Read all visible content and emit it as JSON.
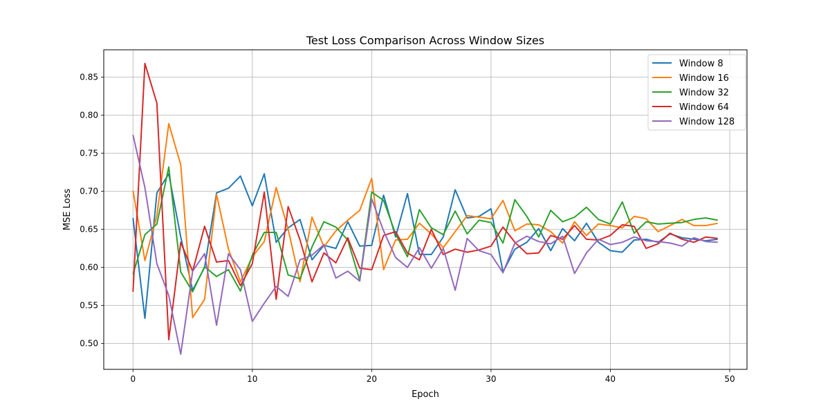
{
  "chart_data": {
    "type": "line",
    "title": "Test Loss Comparison Across Window Sizes",
    "xlabel": "Epoch",
    "ylabel": "MSE Loss",
    "xlim": [
      -2.45,
      51.45
    ],
    "ylim": [
      0.466,
      0.886
    ],
    "xticks": [
      0,
      10,
      20,
      30,
      40,
      50
    ],
    "yticks": [
      0.5,
      0.55,
      0.6,
      0.65,
      0.7,
      0.75,
      0.8,
      0.85
    ],
    "grid": true,
    "legend_position": "top-right",
    "x": [
      0,
      1,
      2,
      3,
      4,
      5,
      6,
      7,
      8,
      9,
      10,
      11,
      12,
      13,
      14,
      15,
      16,
      17,
      18,
      19,
      20,
      21,
      22,
      23,
      24,
      25,
      26,
      27,
      28,
      29,
      30,
      31,
      32,
      33,
      34,
      35,
      36,
      37,
      38,
      39,
      40,
      41,
      42,
      43,
      44,
      45,
      46,
      47,
      48,
      49
    ],
    "series": [
      {
        "name": "Window 8",
        "color": "#1f77b4",
        "values": [
          0.665,
          0.533,
          0.698,
          0.723,
          0.64,
          0.57,
          0.6,
          0.698,
          0.704,
          0.72,
          0.681,
          0.723,
          0.633,
          0.652,
          0.663,
          0.61,
          0.629,
          0.625,
          0.66,
          0.628,
          0.629,
          0.695,
          0.64,
          0.697,
          0.617,
          0.617,
          0.64,
          0.702,
          0.665,
          0.667,
          0.677,
          0.594,
          0.624,
          0.633,
          0.651,
          0.622,
          0.651,
          0.635,
          0.658,
          0.633,
          0.622,
          0.62,
          0.636,
          0.637,
          0.633,
          0.644,
          0.639,
          0.637,
          0.635,
          0.637
        ]
      },
      {
        "name": "Window 16",
        "color": "#ff7f0e",
        "values": [
          0.701,
          0.609,
          0.668,
          0.789,
          0.735,
          0.534,
          0.558,
          0.696,
          0.624,
          0.581,
          0.614,
          0.634,
          0.705,
          0.65,
          0.581,
          0.666,
          0.627,
          0.648,
          0.662,
          0.675,
          0.717,
          0.597,
          0.636,
          0.637,
          0.658,
          0.644,
          0.626,
          0.647,
          0.668,
          0.666,
          0.664,
          0.688,
          0.648,
          0.657,
          0.656,
          0.647,
          0.632,
          0.66,
          0.642,
          0.657,
          0.655,
          0.652,
          0.667,
          0.664,
          0.647,
          0.655,
          0.663,
          0.655,
          0.655,
          0.658
        ]
      },
      {
        "name": "Window 32",
        "color": "#2ca02c",
        "values": [
          0.591,
          0.643,
          0.657,
          0.732,
          0.594,
          0.568,
          0.601,
          0.588,
          0.597,
          0.569,
          0.616,
          0.646,
          0.646,
          0.59,
          0.585,
          0.627,
          0.66,
          0.653,
          0.636,
          0.583,
          0.699,
          0.688,
          0.644,
          0.614,
          0.676,
          0.652,
          0.643,
          0.674,
          0.644,
          0.662,
          0.659,
          0.632,
          0.689,
          0.667,
          0.64,
          0.675,
          0.66,
          0.666,
          0.679,
          0.663,
          0.657,
          0.686,
          0.645,
          0.66,
          0.657,
          0.658,
          0.659,
          0.663,
          0.665,
          0.662
        ]
      },
      {
        "name": "Window 64",
        "color": "#d62728",
        "values": [
          0.568,
          0.868,
          0.816,
          0.505,
          0.633,
          0.595,
          0.654,
          0.607,
          0.609,
          0.576,
          0.605,
          0.699,
          0.558,
          0.68,
          0.636,
          0.581,
          0.619,
          0.606,
          0.639,
          0.599,
          0.597,
          0.642,
          0.647,
          0.619,
          0.61,
          0.65,
          0.617,
          0.624,
          0.62,
          0.623,
          0.628,
          0.653,
          0.633,
          0.618,
          0.619,
          0.642,
          0.637,
          0.655,
          0.637,
          0.636,
          0.642,
          0.656,
          0.654,
          0.625,
          0.631,
          0.645,
          0.637,
          0.633,
          0.64,
          0.638
        ]
      },
      {
        "name": "Window 128",
        "color": "#9467bd",
        "values": [
          0.774,
          0.705,
          0.605,
          0.563,
          0.486,
          0.595,
          0.618,
          0.524,
          0.618,
          0.597,
          0.529,
          0.553,
          0.575,
          0.562,
          0.61,
          0.616,
          0.63,
          0.586,
          0.595,
          0.582,
          0.69,
          0.648,
          0.613,
          0.6,
          0.626,
          0.599,
          0.625,
          0.57,
          0.638,
          0.622,
          0.617,
          0.593,
          0.632,
          0.641,
          0.634,
          0.631,
          0.641,
          0.592,
          0.619,
          0.637,
          0.63,
          0.633,
          0.64,
          0.635,
          0.634,
          0.632,
          0.628,
          0.639,
          0.634,
          0.633
        ]
      }
    ]
  }
}
